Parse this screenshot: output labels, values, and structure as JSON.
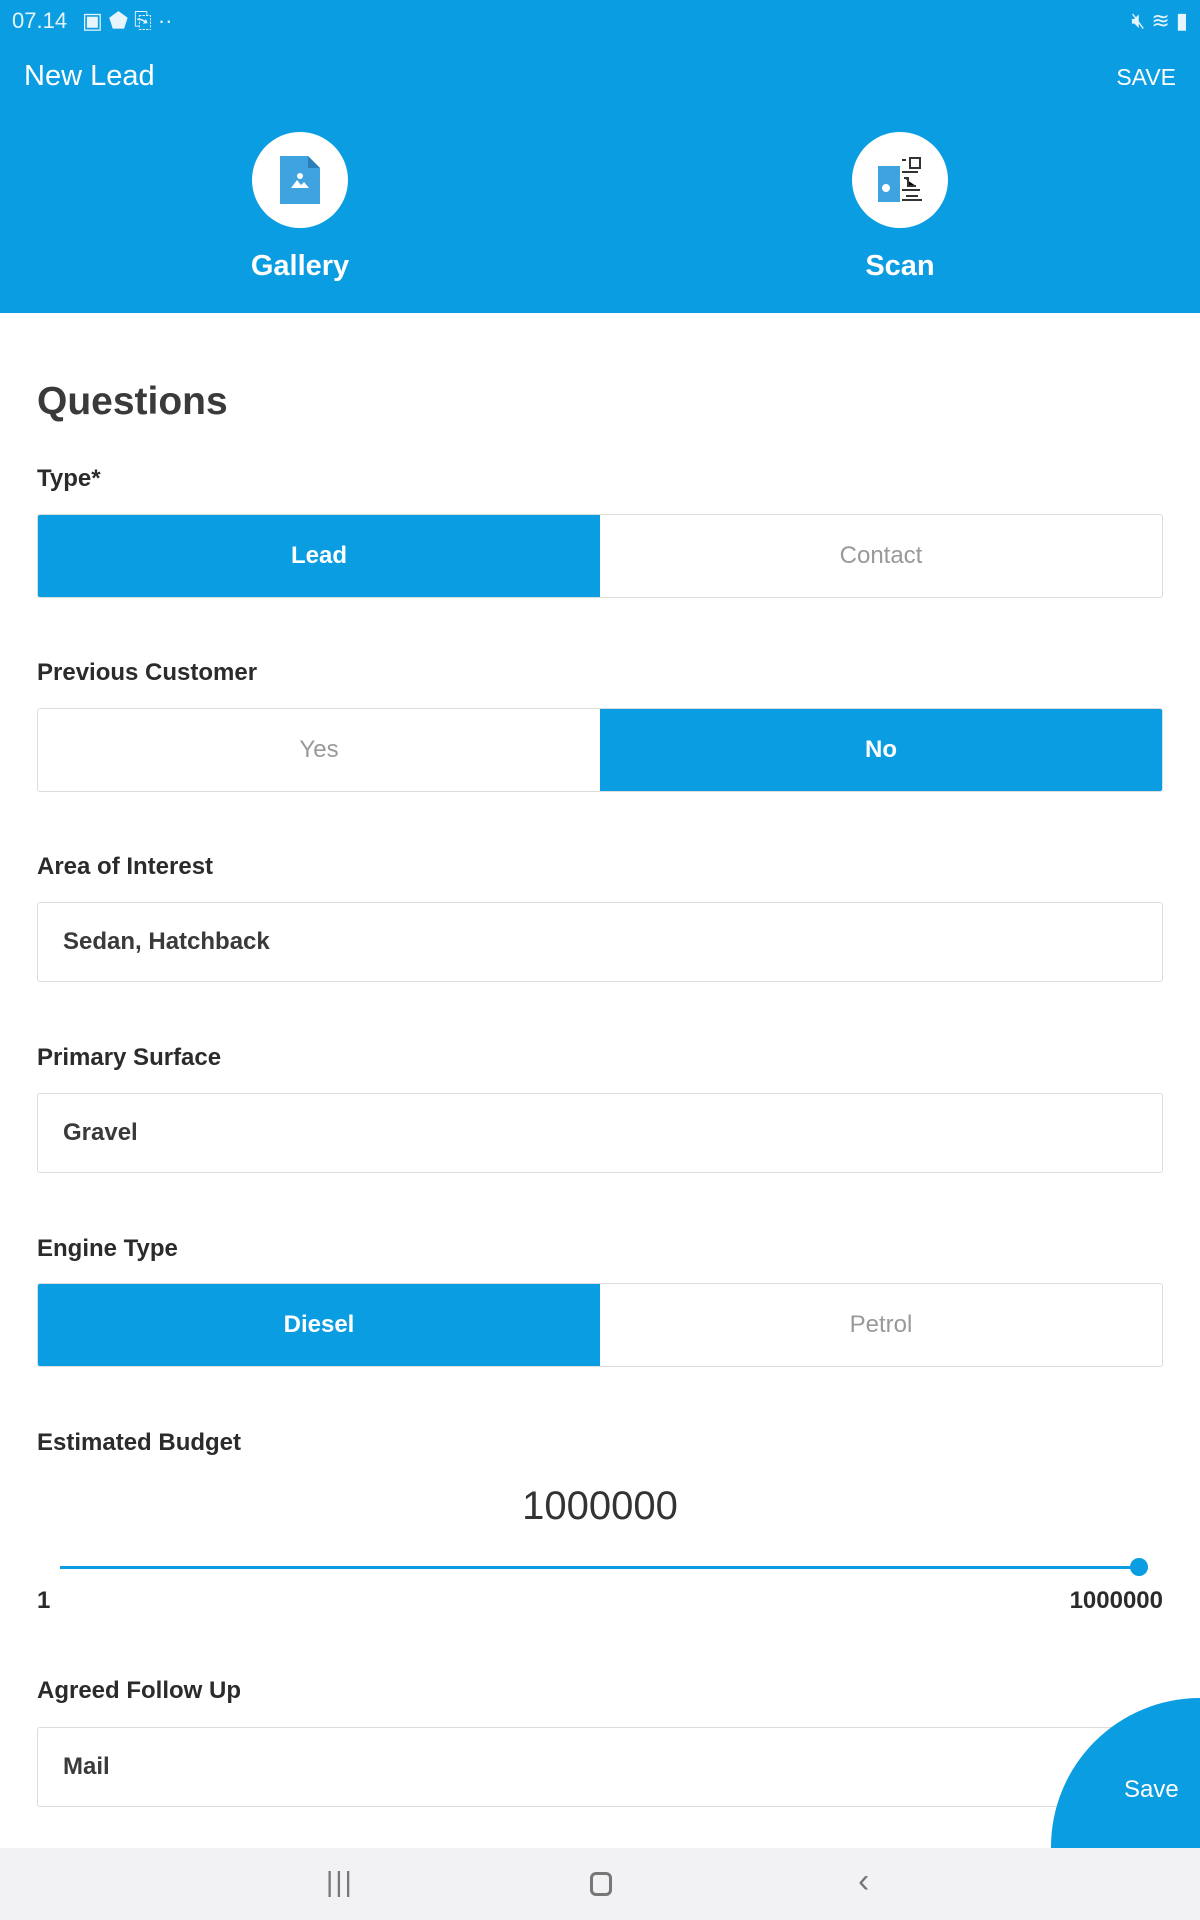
{
  "status": {
    "time": "07.14"
  },
  "header": {
    "title": "New Lead",
    "save": "SAVE",
    "gallery": "Gallery",
    "scan": "Scan"
  },
  "section": "Questions",
  "type": {
    "label": "Type*",
    "options": [
      "Lead",
      "Contact"
    ],
    "selected": "Lead"
  },
  "previous_customer": {
    "label": "Previous Customer",
    "options": [
      "Yes",
      "No"
    ],
    "selected": "No"
  },
  "area_of_interest": {
    "label": "Area of Interest",
    "value": "Sedan, Hatchback"
  },
  "primary_surface": {
    "label": "Primary Surface",
    "value": "Gravel"
  },
  "engine_type": {
    "label": "Engine Type",
    "options": [
      "Diesel",
      "Petrol"
    ],
    "selected": "Diesel"
  },
  "budget": {
    "label": "Estimated Budget",
    "value": "1000000",
    "min": "1",
    "max": "1000000",
    "fraction": 1.0
  },
  "follow_up": {
    "label": "Agreed Follow Up",
    "value": "Mail"
  },
  "fab": {
    "label": "Save"
  },
  "colors": {
    "accent": "#0a9de2",
    "nav_bg": "#f2f2f4"
  }
}
